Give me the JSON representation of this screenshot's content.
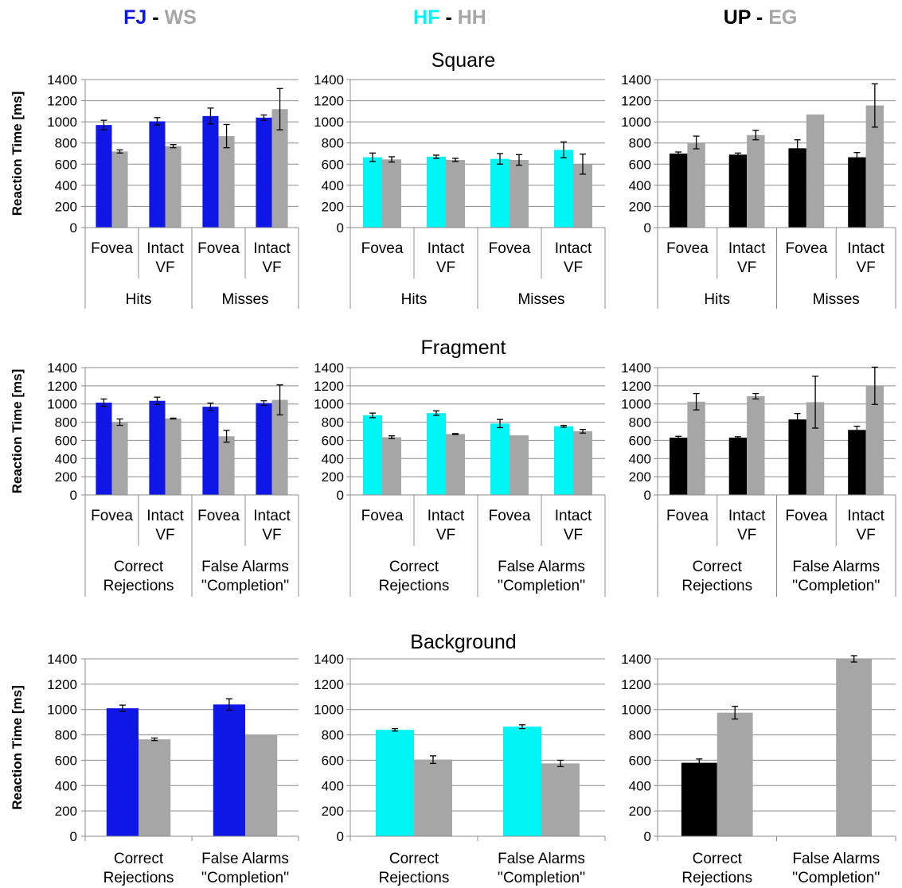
{
  "colors": {
    "FJ": "#0f17e6",
    "HF": "#00f5f5",
    "UP": "#000000",
    "control": "#a6a6a6",
    "label_gray": "#a6a6a6",
    "grid": "#8c8c8c"
  },
  "header": [
    {
      "patient": "FJ",
      "sep": " - ",
      "control": "WS",
      "patient_color": "#0f17e6"
    },
    {
      "patient": "HF",
      "sep": " - ",
      "control": "HH",
      "patient_color": "#00f5f5"
    },
    {
      "patient": "UP",
      "sep": " - ",
      "control": "EG",
      "patient_color": "#000000"
    }
  ],
  "ylabel": "Reaction Time [ms]",
  "chart_data": [
    {
      "type": "bar",
      "row_title": "Square",
      "ylabel": "Reaction Time [ms]",
      "ylim": [
        0,
        1400
      ],
      "yticks": [
        "0",
        "200",
        "400",
        "600",
        "800",
        "1000",
        "1200",
        "1400"
      ],
      "grid": true,
      "categories": [
        [
          "Fovea"
        ],
        [
          "Intact",
          "VF"
        ],
        [
          "Fovea"
        ],
        [
          "Intact",
          "VF"
        ]
      ],
      "groups": [
        {
          "label": [
            "Hits"
          ]
        },
        {
          "label": [
            "Misses"
          ]
        }
      ],
      "panels": [
        {
          "patient": "FJ",
          "control": "WS",
          "series": [
            {
              "role": "patient",
              "values": [
                970,
                1005,
                1055,
                1040
              ],
              "err": [
                45,
                35,
                75,
                25
              ]
            },
            {
              "role": "control",
              "values": [
                720,
                770,
                865,
                1120
              ],
              "err": [
                15,
                15,
                110,
                195
              ]
            }
          ]
        },
        {
          "patient": "HF",
          "control": "HH",
          "series": [
            {
              "role": "patient",
              "values": [
                665,
                670,
                650,
                735
              ],
              "err": [
                40,
                15,
                50,
                75
              ]
            },
            {
              "role": "control",
              "values": [
                645,
                640,
                640,
                600
              ],
              "err": [
                25,
                15,
                50,
                95
              ]
            }
          ]
        },
        {
          "patient": "UP",
          "control": "EG",
          "series": [
            {
              "role": "patient",
              "values": [
                700,
                690,
                750,
                665
              ],
              "err": [
                15,
                15,
                80,
                45
              ]
            },
            {
              "role": "control",
              "values": [
                805,
                875,
                1070,
                1155
              ],
              "err": [
                60,
                45,
                0,
                205
              ]
            }
          ]
        }
      ]
    },
    {
      "type": "bar",
      "row_title": "Fragment",
      "ylabel": "Reaction Time [ms]",
      "ylim": [
        0,
        1400
      ],
      "yticks": [
        "0",
        "200",
        "400",
        "600",
        "800",
        "1000",
        "1200",
        "1400"
      ],
      "grid": true,
      "categories": [
        [
          "Fovea"
        ],
        [
          "Intact",
          "VF"
        ],
        [
          "Fovea"
        ],
        [
          "Intact",
          "VF"
        ]
      ],
      "groups": [
        {
          "label": [
            "Correct",
            "Rejections"
          ]
        },
        {
          "label": [
            "False Alarms",
            "''Completion''"
          ]
        }
      ],
      "panels": [
        {
          "patient": "FJ",
          "control": "WS",
          "series": [
            {
              "role": "patient",
              "values": [
                1015,
                1035,
                970,
                1010
              ],
              "err": [
                40,
                40,
                40,
                25
              ]
            },
            {
              "role": "control",
              "values": [
                800,
                840,
                645,
                1045
              ],
              "err": [
                35,
                5,
                65,
                165
              ]
            }
          ]
        },
        {
          "patient": "HF",
          "control": "HH",
          "series": [
            {
              "role": "patient",
              "values": [
                875,
                900,
                785,
                755
              ],
              "err": [
                25,
                25,
                45,
                10
              ]
            },
            {
              "role": "control",
              "values": [
                635,
                670,
                655,
                700
              ],
              "err": [
                15,
                5,
                0,
                20
              ]
            }
          ]
        },
        {
          "patient": "UP",
          "control": "EG",
          "series": [
            {
              "role": "patient",
              "values": [
                630,
                630,
                830,
                715
              ],
              "err": [
                15,
                10,
                65,
                40
              ]
            },
            {
              "role": "control",
              "values": [
                1025,
                1085,
                1020,
                1200
              ],
              "err": [
                90,
                30,
                285,
                205
              ]
            }
          ]
        }
      ]
    },
    {
      "type": "bar",
      "row_title": "Background",
      "ylabel": "Reaction Time [ms]",
      "ylim": [
        0,
        1400
      ],
      "yticks": [
        "0",
        "200",
        "400",
        "600",
        "800",
        "1000",
        "1200",
        "1400"
      ],
      "grid": true,
      "categories": [],
      "groups": [
        {
          "label": [
            "Correct",
            "Rejections"
          ]
        },
        {
          "label": [
            "False Alarms",
            "''Completion''"
          ]
        }
      ],
      "panels": [
        {
          "patient": "FJ",
          "control": "WS",
          "series": [
            {
              "role": "patient",
              "values": [
                1010,
                1040
              ],
              "err": [
                25,
                45
              ]
            },
            {
              "role": "control",
              "values": [
                765,
                800
              ],
              "err": [
                10,
                0
              ]
            }
          ]
        },
        {
          "patient": "HF",
          "control": "HH",
          "series": [
            {
              "role": "patient",
              "values": [
                840,
                865
              ],
              "err": [
                10,
                15
              ]
            },
            {
              "role": "control",
              "values": [
                605,
                575
              ],
              "err": [
                30,
                25
              ]
            }
          ]
        },
        {
          "patient": "UP",
          "control": "EG",
          "series": [
            {
              "role": "patient",
              "values": [
                580,
                null
              ],
              "err": [
                30,
                null
              ]
            },
            {
              "role": "control",
              "values": [
                975,
                1400
              ],
              "err": [
                50,
                25
              ]
            }
          ]
        }
      ]
    }
  ]
}
